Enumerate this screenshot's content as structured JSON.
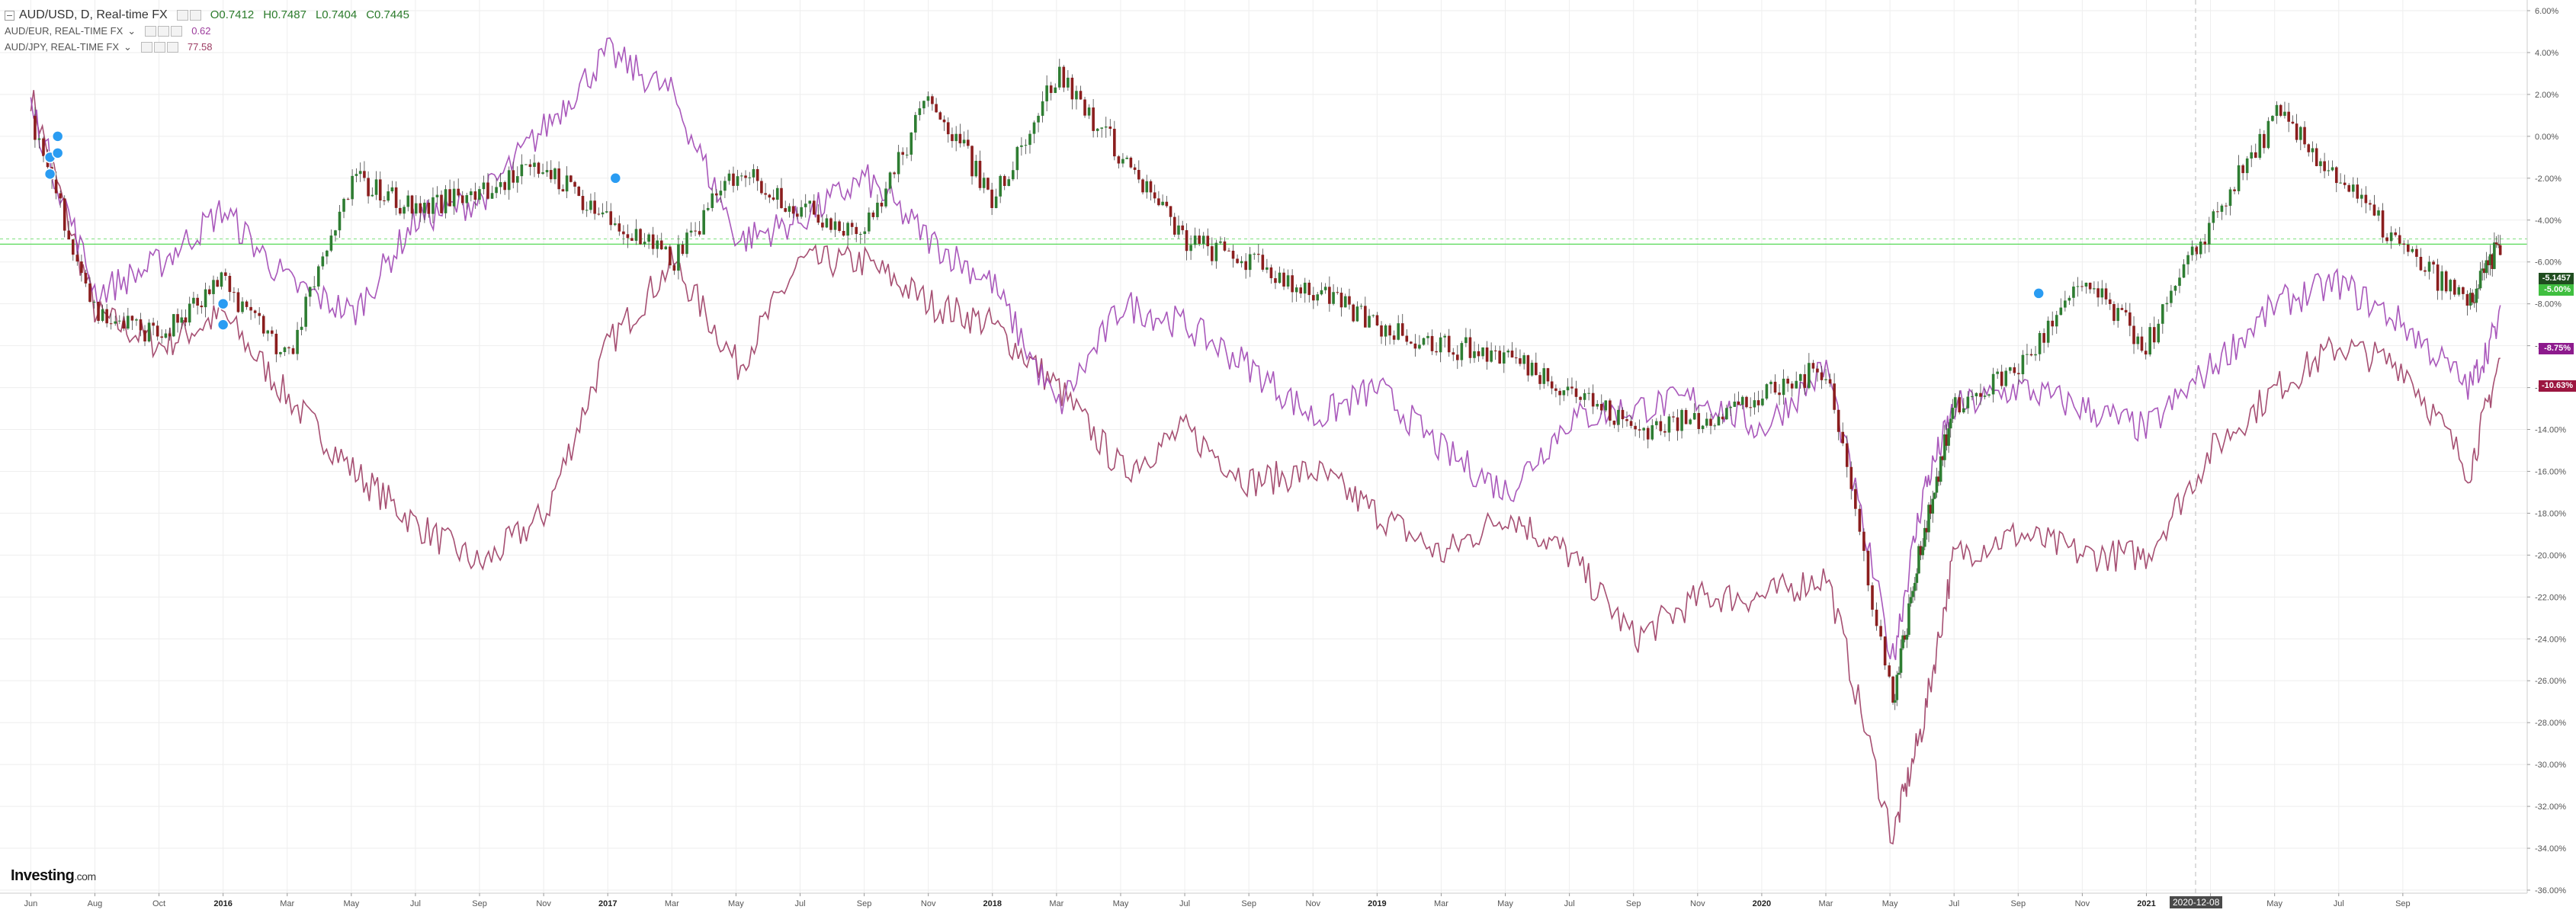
{
  "legend": {
    "main": {
      "symbol": "AUD/USD, D, Real-time FX",
      "open": "O0.7412",
      "high": "H0.7487",
      "low": "L0.7404",
      "close": "C0.7445"
    },
    "sub1": {
      "symbol": "AUD/EUR, REAL-TIME FX",
      "value": "0.62"
    },
    "sub2": {
      "symbol": "AUD/JPY, REAL-TIME FX",
      "value": "77.58"
    }
  },
  "brand": {
    "name": "Investing",
    "suffix": ".com"
  },
  "price_tags": {
    "usd": "-5.1457",
    "green": "-5.00%",
    "eur": "-8.75%",
    "jpy": "-10.63%"
  },
  "crosshair_date": "2020-12-08",
  "colors": {
    "usd_up": "#2e7d32",
    "usd_down": "#8b1e1e",
    "eur": "#a046b4",
    "jpy": "#9c3c63",
    "grid": "#eeeeee",
    "hline": "#57d957"
  },
  "chart_data": {
    "type": "line",
    "ylabel": "",
    "ylim": [
      -36,
      6
    ],
    "y_ticks": [
      "6.00%",
      "4.00%",
      "2.00%",
      "0.00%",
      "-2.00%",
      "-4.00%",
      "-6.00%",
      "-8.00%",
      "-10.00%",
      "-12.00%",
      "-14.00%",
      "-16.00%",
      "-18.00%",
      "-20.00%",
      "-22.00%",
      "-24.00%",
      "-26.00%",
      "-28.00%",
      "-30.00%",
      "-32.00%",
      "-34.00%",
      "-36.00%"
    ],
    "x_tick_labels": [
      "Jun",
      "Aug",
      "Oct",
      "2016",
      "Mar",
      "May",
      "Jul",
      "Sep",
      "Nov",
      "2017",
      "Mar",
      "May",
      "Jul",
      "Sep",
      "Nov",
      "2018",
      "Mar",
      "May",
      "Jul",
      "Sep",
      "Nov",
      "2019",
      "Mar",
      "May",
      "Jul",
      "Sep",
      "Nov",
      "2020",
      "Mar",
      "May",
      "Jul",
      "Sep",
      "Nov",
      "2021",
      "Mar",
      "May",
      "Jul",
      "Sep"
    ],
    "x": [
      2015.33,
      2015.5,
      2015.67,
      2015.83,
      2016.0,
      2016.17,
      2016.33,
      2016.5,
      2016.67,
      2016.83,
      2017.0,
      2017.17,
      2017.33,
      2017.5,
      2017.67,
      2017.83,
      2018.0,
      2018.17,
      2018.33,
      2018.5,
      2018.67,
      2018.83,
      2019.0,
      2019.17,
      2019.33,
      2019.5,
      2019.67,
      2019.83,
      2020.0,
      2020.17,
      2020.25,
      2020.33,
      2020.5,
      2020.67,
      2020.83,
      2021.0,
      2021.17,
      2021.33,
      2021.5,
      2021.67,
      2021.75
    ],
    "series": [
      {
        "key": "usd",
        "type": "candlestick",
        "values": [
          1.0,
          -8.5,
          -9.5,
          -7.0,
          -10.5,
          -2.0,
          -3.5,
          -2.5,
          -1.5,
          -4.0,
          -6.0,
          -1.5,
          -3.5,
          -4.5,
          2.0,
          -3.0,
          3.0,
          -1.0,
          -5.0,
          -6.0,
          -7.5,
          -9.0,
          -10.0,
          -10.5,
          -12.0,
          -14.0,
          -13.5,
          -12.5,
          -11.0,
          -27.0,
          -19.0,
          -13.0,
          -11.0,
          -7.0,
          -10.0,
          -4.0,
          1.0,
          -2.0,
          -5.5,
          -8.0,
          -5.1
        ]
      },
      {
        "key": "eur",
        "type": "line",
        "values": [
          1.5,
          -7.5,
          -6.0,
          -3.5,
          -7.0,
          -8.5,
          -4.0,
          -3.0,
          0.5,
          4.0,
          2.0,
          -5.0,
          -4.0,
          -2.0,
          -5.0,
          -7.0,
          -13.0,
          -8.0,
          -9.0,
          -11.0,
          -13.5,
          -12.0,
          -15.0,
          -17.0,
          -13.5,
          -13.0,
          -12.5,
          -14.0,
          -11.0,
          -25.0,
          -17.0,
          -13.0,
          -12.0,
          -13.0,
          -14.0,
          -11.0,
          -8.0,
          -7.0,
          -9.0,
          -12.0,
          -8.8
        ]
      },
      {
        "key": "jpy",
        "type": "line",
        "values": [
          2.0,
          -8.5,
          -10.0,
          -8.5,
          -12.5,
          -16.0,
          -18.5,
          -20.5,
          -18.0,
          -10.0,
          -6.0,
          -11.0,
          -6.0,
          -6.0,
          -8.0,
          -9.0,
          -12.0,
          -16.0,
          -14.0,
          -16.5,
          -16.0,
          -18.0,
          -20.0,
          -18.0,
          -20.0,
          -24.0,
          -22.0,
          -22.0,
          -21.0,
          -33.5,
          -28.0,
          -20.0,
          -19.0,
          -20.0,
          -20.0,
          -15.0,
          -12.0,
          -10.0,
          -11.0,
          -16.0,
          -10.6
        ]
      }
    ],
    "reference_line": -5.15,
    "grid": true
  }
}
